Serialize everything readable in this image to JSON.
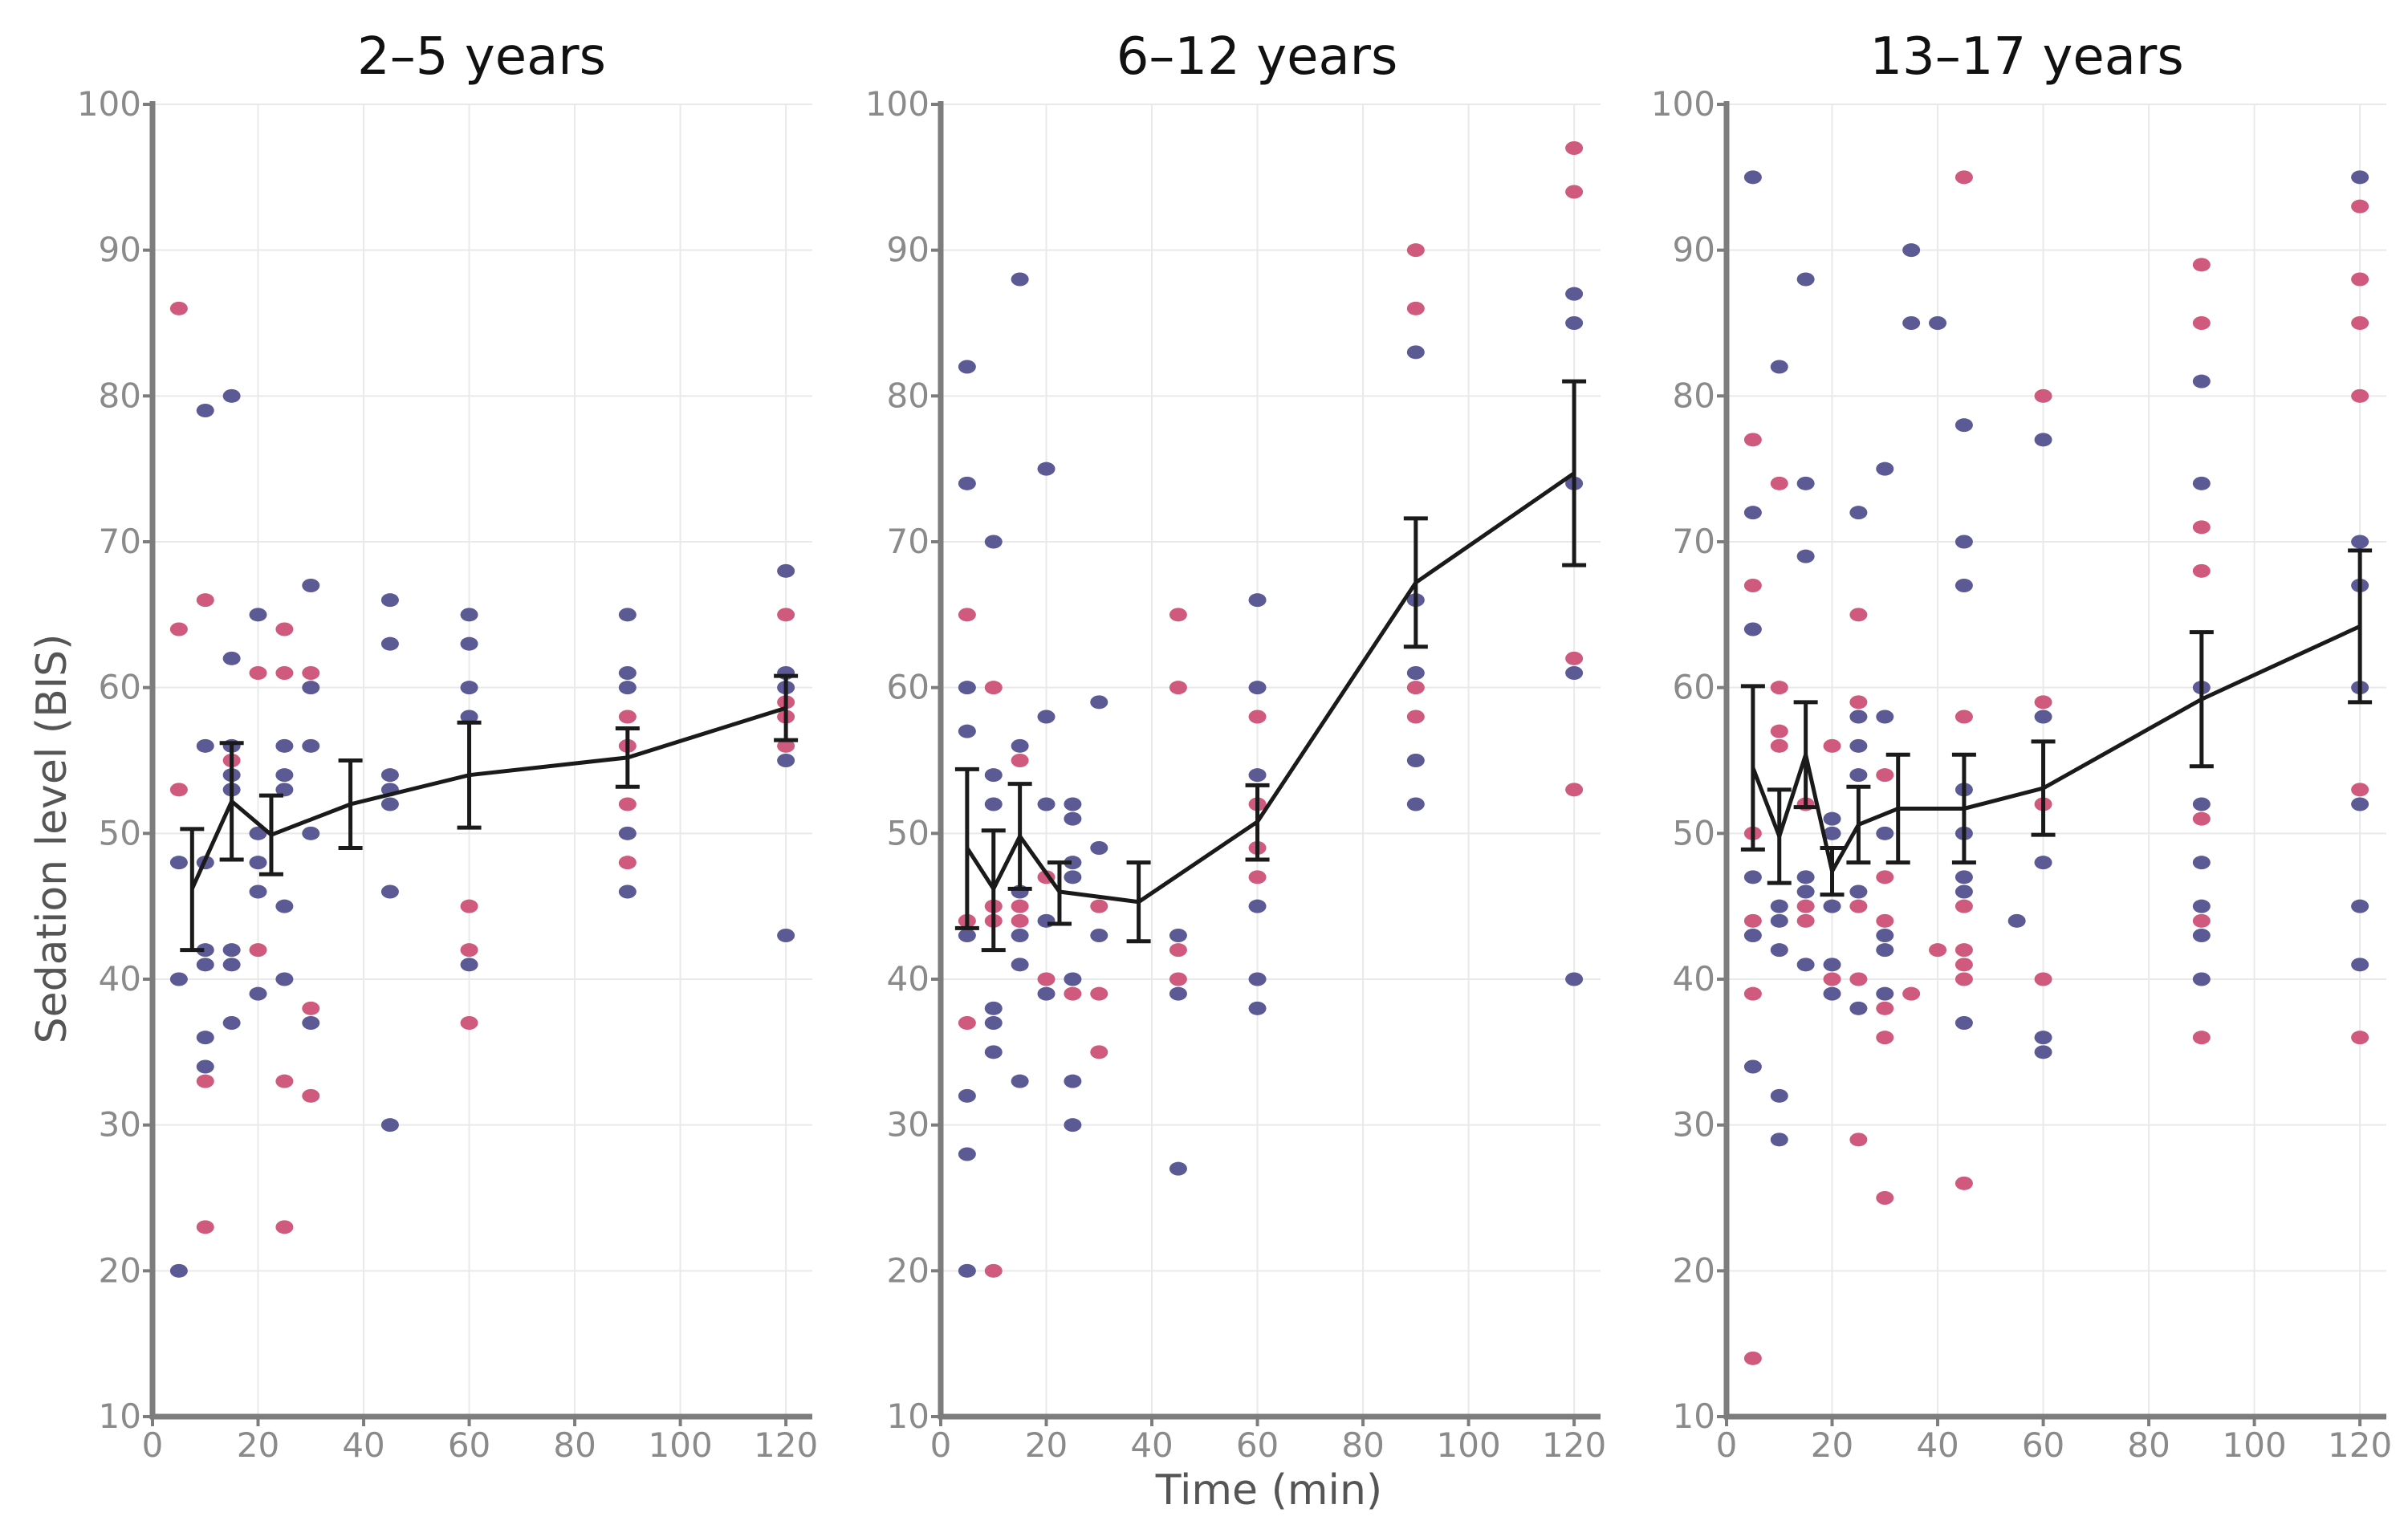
{
  "chart_data": {
    "type": "scatter",
    "ylabel": "Sedation level (BIS)",
    "xlabel": "Time (min)",
    "xlim": [
      0,
      125
    ],
    "ylim": [
      10,
      100
    ],
    "x_ticks": [
      0,
      20,
      40,
      60,
      80,
      100,
      120
    ],
    "y_ticks": [
      10,
      20,
      30,
      40,
      50,
      60,
      70,
      80,
      90,
      100
    ],
    "colors": {
      "group_a": "#5c5a94",
      "group_b": "#d05a7e",
      "mean": "#1a1a1a",
      "axis": "#7d7d7d"
    },
    "panels": [
      {
        "title": "2–5 years",
        "mean": [
          {
            "x": 7.5,
            "y": 46.2,
            "lo": 42.0,
            "hi": 50.3
          },
          {
            "x": 15,
            "y": 52.2,
            "lo": 48.2,
            "hi": 56.2
          },
          {
            "x": 22.5,
            "y": 49.9,
            "lo": 47.2,
            "hi": 52.6
          },
          {
            "x": 37.5,
            "y": 52.0,
            "lo": 49.0,
            "hi": 55.0
          },
          {
            "x": 60,
            "y": 54.0,
            "lo": 50.4,
            "hi": 57.6
          },
          {
            "x": 90,
            "y": 55.2,
            "lo": 53.2,
            "hi": 57.2
          },
          {
            "x": 120,
            "y": 58.6,
            "lo": 56.4,
            "hi": 60.8
          }
        ],
        "group_a": [
          [
            5,
            48
          ],
          [
            5,
            40
          ],
          [
            5,
            20
          ],
          [
            10,
            79
          ],
          [
            10,
            56
          ],
          [
            10,
            48
          ],
          [
            10,
            42
          ],
          [
            10,
            41
          ],
          [
            10,
            36
          ],
          [
            10,
            34
          ],
          [
            15,
            80
          ],
          [
            15,
            62
          ],
          [
            15,
            56
          ],
          [
            15,
            54
          ],
          [
            15,
            53
          ],
          [
            15,
            42
          ],
          [
            15,
            41
          ],
          [
            15,
            37
          ],
          [
            20,
            65
          ],
          [
            20,
            50
          ],
          [
            20,
            48
          ],
          [
            20,
            46
          ],
          [
            20,
            39
          ],
          [
            25,
            56
          ],
          [
            25,
            54
          ],
          [
            25,
            53
          ],
          [
            25,
            45
          ],
          [
            25,
            40
          ],
          [
            30,
            67
          ],
          [
            30,
            60
          ],
          [
            30,
            56
          ],
          [
            30,
            50
          ],
          [
            30,
            37
          ],
          [
            45,
            66
          ],
          [
            45,
            63
          ],
          [
            45,
            54
          ],
          [
            45,
            53
          ],
          [
            45,
            52
          ],
          [
            45,
            46
          ],
          [
            45,
            30
          ],
          [
            60,
            65
          ],
          [
            60,
            63
          ],
          [
            60,
            60
          ],
          [
            60,
            58
          ],
          [
            60,
            41
          ],
          [
            90,
            65
          ],
          [
            90,
            61
          ],
          [
            90,
            60
          ],
          [
            90,
            50
          ],
          [
            90,
            46
          ],
          [
            120,
            68
          ],
          [
            120,
            61
          ],
          [
            120,
            60
          ],
          [
            120,
            55
          ],
          [
            120,
            43
          ]
        ],
        "group_b": [
          [
            5,
            86
          ],
          [
            5,
            64
          ],
          [
            5,
            53
          ],
          [
            10,
            66
          ],
          [
            10,
            33
          ],
          [
            10,
            23
          ],
          [
            15,
            55
          ],
          [
            20,
            61
          ],
          [
            20,
            42
          ],
          [
            25,
            64
          ],
          [
            25,
            61
          ],
          [
            25,
            33
          ],
          [
            25,
            23
          ],
          [
            30,
            61
          ],
          [
            30,
            38
          ],
          [
            30,
            32
          ],
          [
            60,
            45
          ],
          [
            60,
            42
          ],
          [
            60,
            37
          ],
          [
            90,
            58
          ],
          [
            90,
            56
          ],
          [
            90,
            52
          ],
          [
            90,
            48
          ],
          [
            120,
            65
          ],
          [
            120,
            59
          ],
          [
            120,
            58
          ],
          [
            120,
            56
          ]
        ]
      },
      {
        "title": "6–12 years",
        "mean": [
          {
            "x": 5,
            "y": 49.0,
            "lo": 43.5,
            "hi": 54.4
          },
          {
            "x": 10,
            "y": 46.2,
            "lo": 42.0,
            "hi": 50.2
          },
          {
            "x": 15,
            "y": 49.8,
            "lo": 46.2,
            "hi": 53.4
          },
          {
            "x": 22.5,
            "y": 46.0,
            "lo": 43.8,
            "hi": 48.0
          },
          {
            "x": 37.5,
            "y": 45.3,
            "lo": 42.6,
            "hi": 48.0
          },
          {
            "x": 60,
            "y": 50.8,
            "lo": 48.2,
            "hi": 53.3
          },
          {
            "x": 90,
            "y": 67.2,
            "lo": 62.8,
            "hi": 71.6
          },
          {
            "x": 120,
            "y": 74.7,
            "lo": 68.4,
            "hi": 81.0
          }
        ],
        "group_a": [
          [
            5,
            82
          ],
          [
            5,
            74
          ],
          [
            5,
            60
          ],
          [
            5,
            57
          ],
          [
            5,
            43
          ],
          [
            5,
            32
          ],
          [
            5,
            28
          ],
          [
            5,
            20
          ],
          [
            10,
            70
          ],
          [
            10,
            54
          ],
          [
            10,
            52
          ],
          [
            10,
            38
          ],
          [
            10,
            37
          ],
          [
            10,
            35
          ],
          [
            15,
            88
          ],
          [
            15,
            56
          ],
          [
            15,
            46
          ],
          [
            15,
            43
          ],
          [
            15,
            41
          ],
          [
            15,
            33
          ],
          [
            20,
            75
          ],
          [
            20,
            58
          ],
          [
            20,
            52
          ],
          [
            20,
            44
          ],
          [
            20,
            39
          ],
          [
            25,
            52
          ],
          [
            25,
            51
          ],
          [
            25,
            48
          ],
          [
            25,
            47
          ],
          [
            25,
            40
          ],
          [
            25,
            33
          ],
          [
            25,
            30
          ],
          [
            30,
            59
          ],
          [
            30,
            49
          ],
          [
            30,
            43
          ],
          [
            45,
            43
          ],
          [
            45,
            39
          ],
          [
            45,
            27
          ],
          [
            60,
            66
          ],
          [
            60,
            60
          ],
          [
            60,
            54
          ],
          [
            60,
            45
          ],
          [
            60,
            40
          ],
          [
            60,
            38
          ],
          [
            90,
            83
          ],
          [
            90,
            66
          ],
          [
            90,
            61
          ],
          [
            90,
            55
          ],
          [
            90,
            52
          ],
          [
            120,
            87
          ],
          [
            120,
            85
          ],
          [
            120,
            74
          ],
          [
            120,
            61
          ],
          [
            120,
            40
          ]
        ],
        "group_b": [
          [
            5,
            65
          ],
          [
            5,
            44
          ],
          [
            5,
            37
          ],
          [
            10,
            60
          ],
          [
            10,
            45
          ],
          [
            10,
            44
          ],
          [
            10,
            20
          ],
          [
            15,
            55
          ],
          [
            15,
            45
          ],
          [
            15,
            44
          ],
          [
            20,
            47
          ],
          [
            20,
            40
          ],
          [
            25,
            39
          ],
          [
            30,
            45
          ],
          [
            30,
            39
          ],
          [
            30,
            35
          ],
          [
            45,
            65
          ],
          [
            45,
            60
          ],
          [
            45,
            42
          ],
          [
            45,
            40
          ],
          [
            60,
            58
          ],
          [
            60,
            52
          ],
          [
            60,
            49
          ],
          [
            60,
            47
          ],
          [
            90,
            90
          ],
          [
            90,
            86
          ],
          [
            90,
            60
          ],
          [
            90,
            58
          ],
          [
            120,
            97
          ],
          [
            120,
            94
          ],
          [
            120,
            62
          ],
          [
            120,
            53
          ]
        ]
      },
      {
        "title": "13–17 years",
        "mean": [
          {
            "x": 5,
            "y": 54.5,
            "lo": 48.9,
            "hi": 60.1
          },
          {
            "x": 10,
            "y": 49.8,
            "lo": 46.6,
            "hi": 53.0
          },
          {
            "x": 15,
            "y": 55.4,
            "lo": 51.8,
            "hi": 59.0
          },
          {
            "x": 20,
            "y": 47.4,
            "lo": 45.8,
            "hi": 49.0
          },
          {
            "x": 25,
            "y": 50.6,
            "lo": 48.0,
            "hi": 53.2
          },
          {
            "x": 32.5,
            "y": 51.7,
            "lo": 48.0,
            "hi": 55.4
          },
          {
            "x": 45,
            "y": 51.7,
            "lo": 48.0,
            "hi": 55.4
          },
          {
            "x": 60,
            "y": 53.1,
            "lo": 49.9,
            "hi": 56.3
          },
          {
            "x": 90,
            "y": 59.2,
            "lo": 54.6,
            "hi": 63.8
          },
          {
            "x": 120,
            "y": 64.2,
            "lo": 59.0,
            "hi": 69.4
          }
        ],
        "group_a": [
          [
            5,
            95
          ],
          [
            5,
            72
          ],
          [
            5,
            64
          ],
          [
            5,
            47
          ],
          [
            5,
            43
          ],
          [
            5,
            34
          ],
          [
            10,
            82
          ],
          [
            10,
            45
          ],
          [
            10,
            44
          ],
          [
            10,
            42
          ],
          [
            10,
            32
          ],
          [
            10,
            29
          ],
          [
            15,
            88
          ],
          [
            15,
            74
          ],
          [
            15,
            69
          ],
          [
            15,
            47
          ],
          [
            15,
            46
          ],
          [
            15,
            41
          ],
          [
            20,
            51
          ],
          [
            20,
            50
          ],
          [
            20,
            45
          ],
          [
            20,
            41
          ],
          [
            20,
            39
          ],
          [
            25,
            72
          ],
          [
            25,
            58
          ],
          [
            25,
            56
          ],
          [
            25,
            54
          ],
          [
            25,
            46
          ],
          [
            25,
            38
          ],
          [
            30,
            75
          ],
          [
            30,
            58
          ],
          [
            30,
            50
          ],
          [
            30,
            43
          ],
          [
            30,
            42
          ],
          [
            30,
            39
          ],
          [
            35,
            90
          ],
          [
            35,
            85
          ],
          [
            40,
            85
          ],
          [
            45,
            78
          ],
          [
            45,
            70
          ],
          [
            45,
            67
          ],
          [
            45,
            53
          ],
          [
            45,
            50
          ],
          [
            45,
            47
          ],
          [
            45,
            46
          ],
          [
            45,
            37
          ],
          [
            55,
            44
          ],
          [
            60,
            77
          ],
          [
            60,
            58
          ],
          [
            60,
            48
          ],
          [
            60,
            36
          ],
          [
            60,
            35
          ],
          [
            90,
            81
          ],
          [
            90,
            74
          ],
          [
            90,
            60
          ],
          [
            90,
            52
          ],
          [
            90,
            48
          ],
          [
            90,
            45
          ],
          [
            90,
            43
          ],
          [
            90,
            40
          ],
          [
            120,
            95
          ],
          [
            120,
            70
          ],
          [
            120,
            67
          ],
          [
            120,
            60
          ],
          [
            120,
            52
          ],
          [
            120,
            45
          ],
          [
            120,
            41
          ]
        ],
        "group_b": [
          [
            5,
            77
          ],
          [
            5,
            67
          ],
          [
            5,
            50
          ],
          [
            5,
            44
          ],
          [
            5,
            39
          ],
          [
            5,
            14
          ],
          [
            10,
            74
          ],
          [
            10,
            60
          ],
          [
            10,
            57
          ],
          [
            10,
            56
          ],
          [
            15,
            52
          ],
          [
            15,
            45
          ],
          [
            15,
            44
          ],
          [
            20,
            56
          ],
          [
            20,
            40
          ],
          [
            25,
            65
          ],
          [
            25,
            59
          ],
          [
            25,
            45
          ],
          [
            25,
            40
          ],
          [
            25,
            29
          ],
          [
            30,
            54
          ],
          [
            30,
            47
          ],
          [
            30,
            44
          ],
          [
            30,
            38
          ],
          [
            30,
            36
          ],
          [
            30,
            25
          ],
          [
            35,
            39
          ],
          [
            40,
            42
          ],
          [
            45,
            95
          ],
          [
            45,
            58
          ],
          [
            45,
            45
          ],
          [
            45,
            42
          ],
          [
            45,
            41
          ],
          [
            45,
            40
          ],
          [
            45,
            26
          ],
          [
            60,
            80
          ],
          [
            60,
            59
          ],
          [
            60,
            52
          ],
          [
            60,
            40
          ],
          [
            90,
            89
          ],
          [
            90,
            85
          ],
          [
            90,
            71
          ],
          [
            90,
            68
          ],
          [
            90,
            51
          ],
          [
            90,
            44
          ],
          [
            90,
            36
          ],
          [
            120,
            93
          ],
          [
            120,
            88
          ],
          [
            120,
            85
          ],
          [
            120,
            80
          ],
          [
            120,
            53
          ],
          [
            120,
            36
          ]
        ]
      }
    ]
  }
}
